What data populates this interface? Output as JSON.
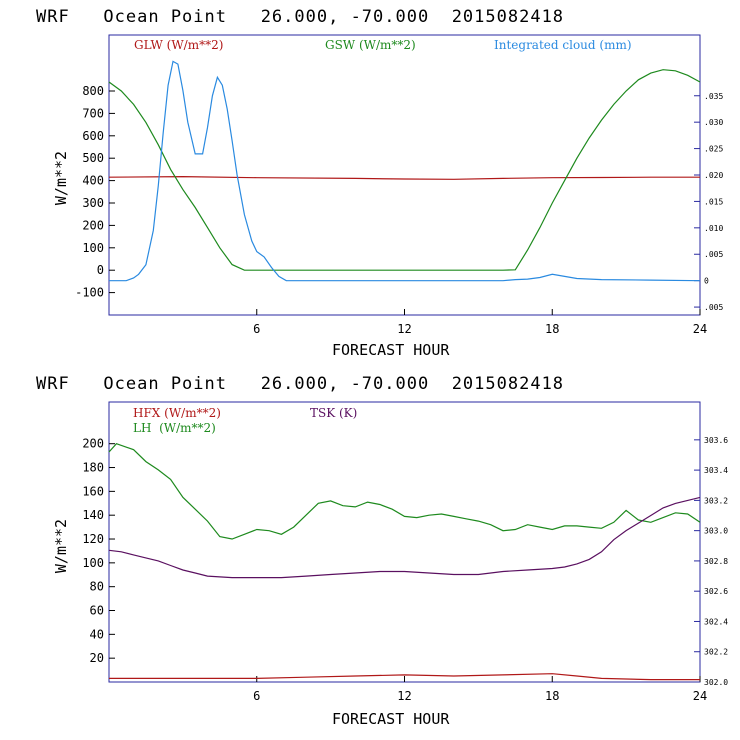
{
  "colors": {
    "glw": "#b01818",
    "gsw": "#1e8a1e",
    "cloud": "#2a8ae0",
    "hfx": "#b01818",
    "lh": "#1e8a1e",
    "tsk": "#5a1060",
    "frame": "#2a2aa0"
  },
  "chart_data": [
    {
      "type": "line",
      "title": "WRF   Ocean Point   26.000, -70.000  2015082418",
      "xlabel": "FORECAST HOUR",
      "ylabel": "W/m**2",
      "xlim": [
        0,
        24
      ],
      "ylim": [
        -200,
        1050
      ],
      "yticks": [
        -100,
        0,
        100,
        200,
        300,
        400,
        500,
        600,
        700,
        800
      ],
      "ytick_labels": [
        "-100",
        "0",
        "100",
        "200",
        "300",
        "400",
        "500",
        "600",
        "700",
        "800"
      ],
      "xticks": [
        6,
        12,
        18,
        24
      ],
      "xtick_labels": [
        "6",
        "12",
        "18",
        "24"
      ],
      "y2lim": [
        -0.0065,
        0.0465
      ],
      "y2ticks": [
        -0.005,
        0,
        0.005,
        0.01,
        0.015,
        0.02,
        0.025,
        0.03,
        0.035
      ],
      "y2tick_labels": [
        ".005",
        "0",
        ".005",
        ".010",
        ".015",
        ".020",
        ".025",
        ".030",
        ".035"
      ],
      "legend": [
        "GLW (W/m**2)",
        "GSW (W/m**2)",
        "Integrated cloud (mm)"
      ],
      "series": [
        {
          "name": "GLW (W/m**2)",
          "axis": "left",
          "color": "glw",
          "x": [
            0,
            3,
            6,
            10,
            12,
            14,
            16,
            18,
            20,
            22,
            24
          ],
          "y": [
            415,
            418,
            413,
            410,
            407,
            406,
            410,
            413,
            414,
            415,
            415
          ]
        },
        {
          "name": "GSW (W/m**2)",
          "axis": "left",
          "color": "gsw",
          "x": [
            0,
            0.5,
            1,
            1.5,
            2,
            2.5,
            3,
            3.5,
            4,
            4.5,
            5,
            5.5,
            16,
            16.5,
            17,
            17.5,
            18,
            18.5,
            19,
            19.5,
            20,
            20.5,
            21,
            21.5,
            22,
            22.5,
            23,
            23.5,
            24
          ],
          "y": [
            840,
            800,
            740,
            660,
            560,
            450,
            360,
            280,
            190,
            100,
            25,
            0,
            0,
            2,
            90,
            190,
            300,
            400,
            500,
            590,
            670,
            740,
            800,
            850,
            880,
            895,
            890,
            870,
            840
          ]
        },
        {
          "name": "Integrated cloud (mm)",
          "axis": "right",
          "color": "cloud",
          "x": [
            0,
            0.7,
            1,
            1.2,
            1.5,
            1.8,
            2,
            2.2,
            2.4,
            2.6,
            2.8,
            3,
            3.2,
            3.5,
            3.8,
            4,
            4.2,
            4.4,
            4.6,
            4.8,
            5,
            5.2,
            5.5,
            5.8,
            6,
            6.3,
            6.6,
            6.9,
            7.2,
            8,
            12,
            16,
            16.5,
            17,
            17.5,
            18,
            18.5,
            19,
            20,
            22,
            24
          ],
          "y": [
            0,
            0,
            0.0005,
            0.0012,
            0.003,
            0.0095,
            0.018,
            0.028,
            0.037,
            0.0415,
            0.041,
            0.036,
            0.03,
            0.024,
            0.024,
            0.029,
            0.035,
            0.0385,
            0.037,
            0.0325,
            0.0265,
            0.02,
            0.0125,
            0.0075,
            0.0055,
            0.0045,
            0.0025,
            0.0008,
            0,
            0,
            0,
            0,
            0.0002,
            0.0003,
            0.0006,
            0.0012,
            0.0008,
            0.0004,
            0.0002,
            0.0001,
            0
          ]
        }
      ]
    },
    {
      "type": "line",
      "title": "WRF   Ocean Point   26.000, -70.000  2015082418",
      "xlabel": "FORECAST HOUR",
      "ylabel": "W/m**2",
      "xlim": [
        0,
        24
      ],
      "ylim": [
        0,
        235
      ],
      "yticks": [
        20,
        40,
        60,
        80,
        100,
        120,
        140,
        160,
        180,
        200
      ],
      "ytick_labels": [
        "20",
        "40",
        "60",
        "80",
        "100",
        "120",
        "140",
        "160",
        "180",
        "200"
      ],
      "xticks": [
        6,
        12,
        18,
        24
      ],
      "xtick_labels": [
        "6",
        "12",
        "18",
        "24"
      ],
      "y2lim": [
        302.0,
        303.85
      ],
      "y2ticks": [
        302.0,
        302.2,
        302.4,
        302.6,
        302.8,
        303.0,
        303.2,
        303.4,
        303.6
      ],
      "y2tick_labels": [
        "302.0",
        "302.2",
        "302.4",
        "302.6",
        "302.8",
        "303.0",
        "303.2",
        "303.4",
        "303.6"
      ],
      "legend": [
        "HFX (W/m**2)",
        "LH  (W/m**2)",
        "TSK (K)"
      ],
      "series": [
        {
          "name": "HFX (W/m**2)",
          "axis": "left",
          "color": "hfx",
          "x": [
            0,
            2,
            4,
            6,
            8,
            10,
            12,
            14,
            16,
            18,
            19,
            20,
            22,
            24
          ],
          "y": [
            3,
            3,
            3,
            3,
            4,
            5,
            6,
            5,
            6,
            7,
            5,
            3,
            2,
            2
          ]
        },
        {
          "name": "LH  (W/m**2)",
          "axis": "left",
          "color": "lh",
          "x": [
            0,
            0.3,
            1,
            1.5,
            2,
            2.5,
            3,
            3.5,
            4,
            4.5,
            5,
            5.5,
            6,
            6.5,
            7,
            7.5,
            8,
            8.5,
            9,
            9.5,
            10,
            10.5,
            11,
            11.5,
            12,
            12.5,
            13,
            13.5,
            14,
            14.5,
            15,
            15.5,
            16,
            16.5,
            17,
            17.5,
            18,
            18.5,
            19,
            19.5,
            20,
            20.5,
            21,
            21.5,
            22,
            22.5,
            23,
            23.5,
            24
          ],
          "y": [
            193,
            200,
            195,
            185,
            178,
            170,
            155,
            145,
            135,
            122,
            120,
            124,
            128,
            127,
            124,
            130,
            140,
            150,
            152,
            148,
            147,
            151,
            149,
            145,
            139,
            138,
            140,
            141,
            139,
            137,
            135,
            132,
            127,
            128,
            132,
            130,
            128,
            131,
            131,
            130,
            129,
            134,
            144,
            136,
            134,
            138,
            142,
            141,
            134
          ]
        },
        {
          "name": "TSK (K)",
          "axis": "right",
          "color": "tsk",
          "x": [
            0,
            0.5,
            1,
            1.5,
            2,
            2.5,
            3,
            3.5,
            4,
            5,
            6,
            7,
            8,
            9,
            10,
            11,
            12,
            13,
            14,
            15,
            16,
            17,
            18,
            18.5,
            19,
            19.5,
            20,
            20.5,
            21,
            21.5,
            22,
            22.5,
            23,
            23.5,
            24
          ],
          "y": [
            302.87,
            302.86,
            302.84,
            302.82,
            302.8,
            302.77,
            302.74,
            302.72,
            302.7,
            302.69,
            302.69,
            302.69,
            302.7,
            302.71,
            302.72,
            302.73,
            302.73,
            302.72,
            302.71,
            302.71,
            302.73,
            302.74,
            302.75,
            302.76,
            302.78,
            302.81,
            302.86,
            302.94,
            303.0,
            303.05,
            303.1,
            303.15,
            303.18,
            303.2,
            303.22
          ]
        }
      ]
    }
  ]
}
